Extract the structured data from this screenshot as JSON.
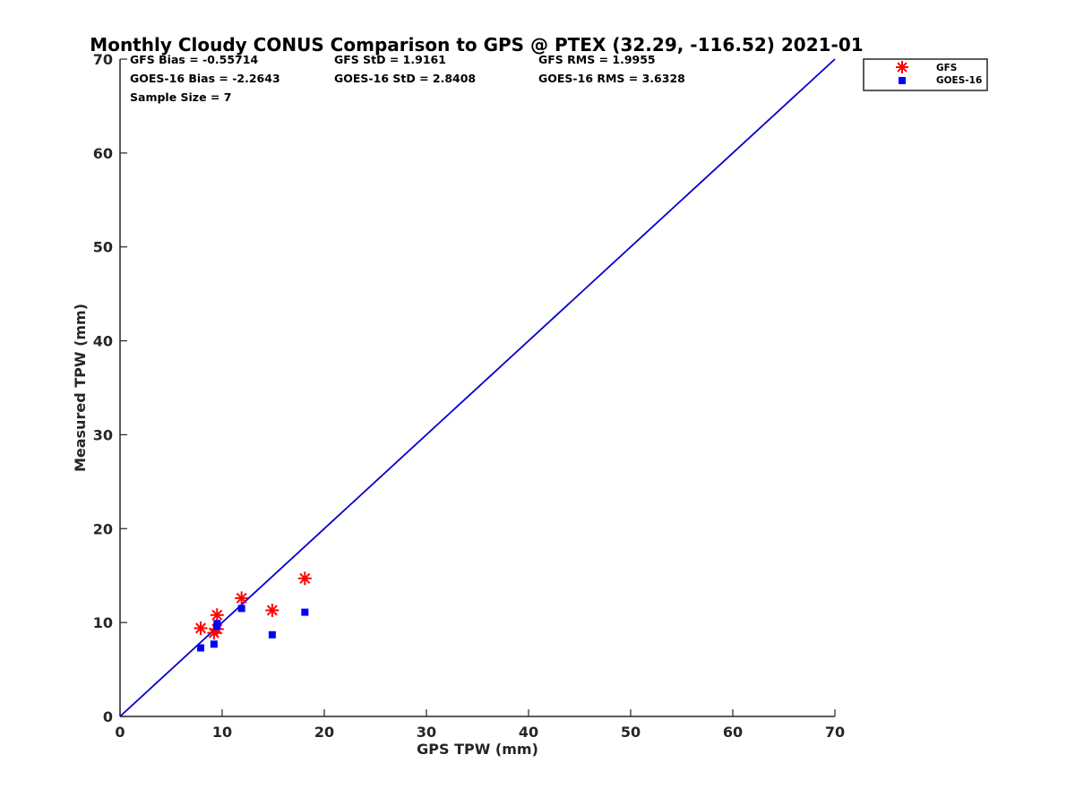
{
  "chart_data": {
    "type": "scatter",
    "title": "Monthly Cloudy CONUS Comparison to GPS @ PTEX (32.29, -116.52) 2021-01",
    "xlabel": "GPS TPW (mm)",
    "ylabel": "Measured TPW (mm)",
    "xlim": [
      0,
      70
    ],
    "ylim": [
      0,
      70
    ],
    "xticks": [
      0,
      10,
      20,
      30,
      40,
      50,
      60,
      70
    ],
    "yticks": [
      0,
      10,
      20,
      30,
      40,
      50,
      60,
      70
    ],
    "grid": false,
    "legend_position": "outside-top-right",
    "stats": {
      "gfs_bias": "GFS Bias = -0.55714",
      "gfs_std": "GFS StD = 1.9161",
      "gfs_rms": "GFS RMS = 1.9955",
      "goes_bias": "GOES-16 Bias = -2.2643",
      "goes_std": "GOES-16 StD = 2.8408",
      "goes_rms": "GOES-16 RMS = 3.6328",
      "sample_size": "Sample Size = 7"
    },
    "reference_line": {
      "name": "1:1 line",
      "x": [
        0,
        70
      ],
      "y": [
        0,
        70
      ],
      "color": "#0000cc"
    },
    "series": [
      {
        "name": "GFS",
        "marker": "asterisk",
        "color": "#ff0000",
        "x": [
          7.9,
          9.2,
          9.5,
          9.5,
          11.9,
          14.9,
          18.1
        ],
        "y": [
          9.4,
          8.9,
          9.3,
          10.8,
          12.6,
          11.3,
          14.7
        ]
      },
      {
        "name": "GOES-16",
        "marker": "square",
        "color": "#0000ff",
        "x": [
          7.9,
          9.2,
          9.5,
          9.5,
          11.9,
          14.9,
          18.1
        ],
        "y": [
          7.3,
          7.7,
          9.6,
          9.9,
          11.5,
          8.7,
          11.1
        ]
      }
    ]
  }
}
